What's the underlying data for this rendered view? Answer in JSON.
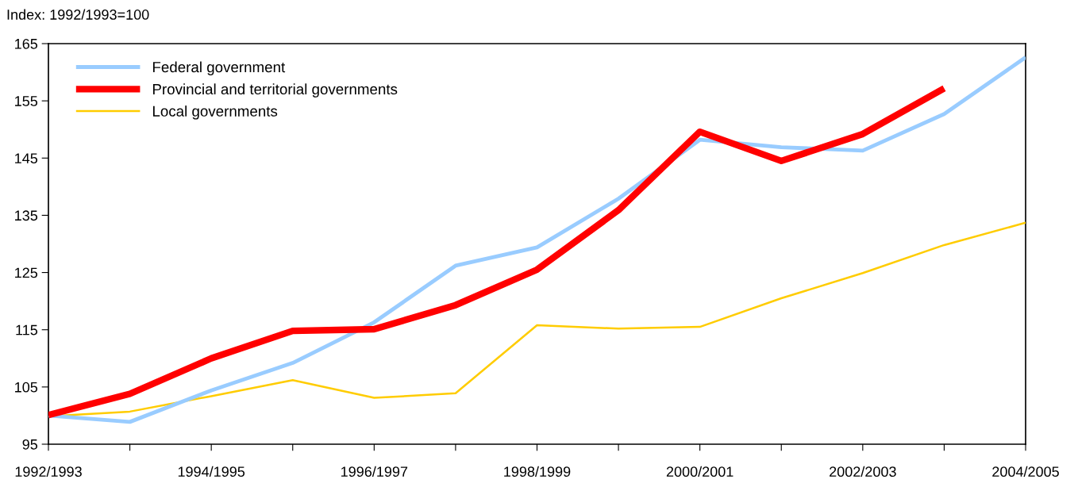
{
  "chart_data": {
    "type": "line",
    "ylabel": "Index: 1992/1993=100",
    "categories": [
      "1992/1993",
      null,
      "1994/1995",
      null,
      "1996/1997",
      null,
      "1998/1999",
      null,
      "2000/2001",
      null,
      "2002/2003",
      null,
      "2004/2005"
    ],
    "ylim": [
      95,
      165
    ],
    "yticks": [
      95,
      105,
      115,
      125,
      135,
      145,
      155,
      165
    ],
    "grid": false,
    "legend": "top left",
    "marker": "none",
    "line_style": "solid",
    "series": [
      {
        "name": "Federal government",
        "color": "#99ccff",
        "values": [
          100.0,
          98.9,
          104.4,
          109.2,
          116.3,
          126.2,
          129.4,
          137.9,
          148.2,
          146.9,
          146.3,
          152.7,
          162.6
        ]
      },
      {
        "name": "Provincial and territorial governments",
        "color": "#ff0000",
        "values": [
          100.1,
          103.8,
          110.0,
          114.8,
          115.1,
          119.3,
          125.5,
          135.9,
          149.6,
          144.5,
          149.2,
          157.2,
          null
        ]
      },
      {
        "name": "Local governments",
        "color": "#ffcc00",
        "values": [
          99.9,
          100.7,
          103.4,
          106.2,
          103.1,
          103.9,
          115.8,
          115.2,
          115.5,
          120.5,
          124.9,
          129.8,
          133.7
        ]
      }
    ]
  }
}
